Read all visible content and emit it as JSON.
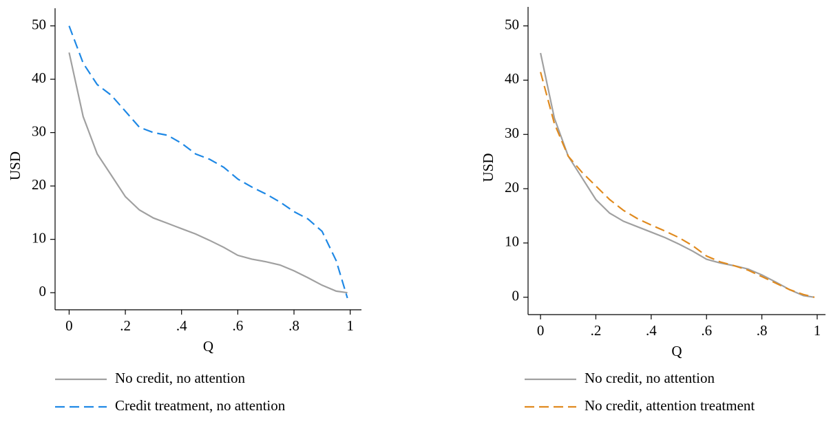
{
  "chart_data": [
    {
      "type": "line",
      "xlabel": "Q",
      "ylabel": "USD",
      "x": [
        0,
        0.05,
        0.1,
        0.15,
        0.2,
        0.25,
        0.3,
        0.35,
        0.4,
        0.45,
        0.5,
        0.55,
        0.6,
        0.65,
        0.7,
        0.75,
        0.8,
        0.85,
        0.9,
        0.95,
        0.99
      ],
      "xlim": [
        -0.05,
        1.04
      ],
      "xticks": [
        0,
        {
          "value": 0.2,
          "label": ".2"
        },
        {
          "value": 0.4,
          "label": ".4"
        },
        {
          "value": 0.6,
          "label": ".6"
        },
        {
          "value": 0.8,
          "label": ".8"
        },
        1
      ],
      "ylim": [
        -3.2,
        53.3
      ],
      "yticks": [
        0,
        10,
        20,
        30,
        40,
        50
      ],
      "series": [
        {
          "name": "No credit, no attention",
          "color": "#a0a0a0",
          "style": "solid",
          "values": [
            45,
            33,
            26,
            22,
            18,
            15.5,
            14,
            13,
            12,
            11,
            9.8,
            8.5,
            7,
            6.3,
            5.8,
            5.2,
            4.1,
            2.8,
            1.4,
            0.3,
            0
          ]
        },
        {
          "name": "Credit treatment, no attention",
          "color": "#1e88e5",
          "style": "dashed",
          "values": [
            50,
            43,
            39,
            37,
            34,
            31,
            30,
            29.5,
            28,
            26,
            25,
            23.5,
            21.3,
            19.8,
            18.5,
            17,
            15.2,
            13.8,
            11.5,
            6,
            -1
          ]
        }
      ]
    },
    {
      "type": "line",
      "xlabel": "Q",
      "ylabel": "USD",
      "x": [
        0,
        0.05,
        0.1,
        0.15,
        0.2,
        0.25,
        0.3,
        0.35,
        0.4,
        0.45,
        0.5,
        0.55,
        0.6,
        0.65,
        0.7,
        0.75,
        0.8,
        0.85,
        0.9,
        0.95,
        0.99
      ],
      "xlim": [
        -0.045,
        1.03
      ],
      "xticks": [
        0,
        {
          "value": 0.2,
          "label": ".2"
        },
        {
          "value": 0.4,
          "label": ".4"
        },
        {
          "value": 0.6,
          "label": ".6"
        },
        {
          "value": 0.8,
          "label": ".8"
        },
        1
      ],
      "ylim": [
        -3.2,
        53.5
      ],
      "yticks": [
        0,
        10,
        20,
        30,
        40,
        50
      ],
      "series": [
        {
          "name": "No credit, no attention",
          "color": "#a0a0a0",
          "style": "solid",
          "values": [
            45,
            33,
            26,
            22,
            18,
            15.5,
            14,
            13,
            12,
            11,
            9.8,
            8.5,
            7,
            6.3,
            5.8,
            5.2,
            4.1,
            2.8,
            1.4,
            0.3,
            0
          ]
        },
        {
          "name": "No credit, attention treatment",
          "color": "#e08a1e",
          "style": "dashed",
          "values": [
            41.5,
            32,
            26,
            23,
            20.5,
            18,
            16,
            14.5,
            13.3,
            12.2,
            11,
            9.5,
            7.6,
            6.5,
            5.8,
            5,
            3.8,
            2.6,
            1.4,
            0.5,
            0
          ]
        }
      ]
    }
  ]
}
